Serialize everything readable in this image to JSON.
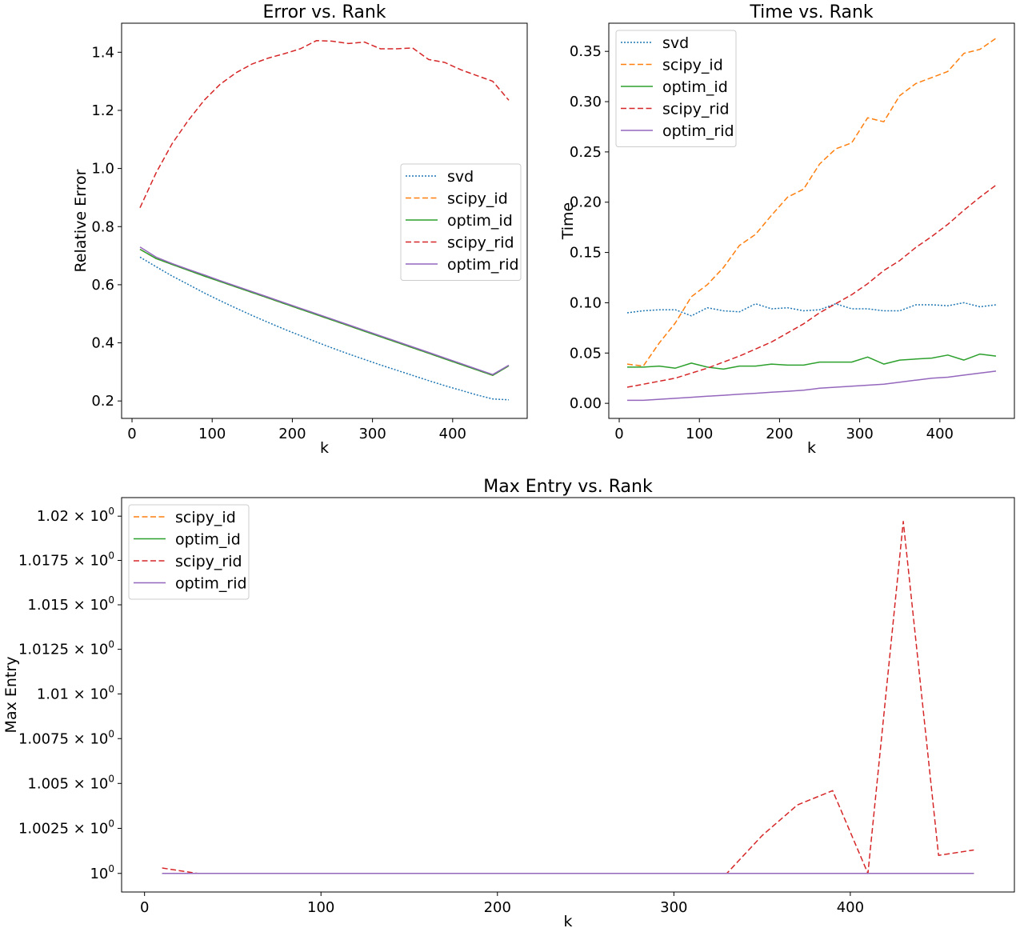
{
  "colors": {
    "svd": "#1f77b4",
    "scipy_id": "#ff7f0e",
    "optim_id": "#2ca02c",
    "scipy_rid": "#d62728",
    "optim_rid": "#9467bd"
  },
  "chart_data": [
    {
      "type": "line",
      "title": "Error vs. Rank",
      "xlabel": "k",
      "ylabel": "Relative Error",
      "xlim": [
        -13,
        493
      ],
      "ylim": [
        0.14,
        1.5
      ],
      "xticks": [
        0,
        100,
        200,
        300,
        400
      ],
      "yticks": [
        0.2,
        0.4,
        0.6,
        0.8,
        1.0,
        1.2,
        1.4
      ],
      "ytick_labels": [
        "0.2",
        "0.4",
        "0.6",
        "0.8",
        "1.0",
        "1.2",
        "1.4"
      ],
      "legend": "center-right",
      "x": [
        10,
        30,
        50,
        70,
        90,
        110,
        130,
        150,
        170,
        190,
        210,
        230,
        250,
        270,
        290,
        310,
        330,
        350,
        370,
        390,
        410,
        430,
        450,
        470
      ],
      "series": [
        {
          "name": "svd",
          "style": "dotted",
          "values": [
            0.695,
            0.662,
            0.63,
            0.601,
            0.572,
            0.545,
            0.519,
            0.494,
            0.47,
            0.447,
            0.425,
            0.403,
            0.382,
            0.362,
            0.343,
            0.324,
            0.306,
            0.288,
            0.27,
            0.253,
            0.237,
            0.221,
            0.207,
            0.204
          ]
        },
        {
          "name": "scipy_id",
          "style": "dashed",
          "values": [
            0.722,
            0.69,
            0.67,
            0.65,
            0.63,
            0.611,
            0.592,
            0.573,
            0.554,
            0.535,
            0.516,
            0.497,
            0.478,
            0.459,
            0.44,
            0.421,
            0.402,
            0.383,
            0.364,
            0.345,
            0.326,
            0.307,
            0.288,
            0.321
          ]
        },
        {
          "name": "optim_id",
          "style": "solid",
          "values": [
            0.722,
            0.69,
            0.67,
            0.65,
            0.63,
            0.611,
            0.592,
            0.573,
            0.554,
            0.535,
            0.516,
            0.497,
            0.478,
            0.459,
            0.44,
            0.421,
            0.402,
            0.383,
            0.364,
            0.345,
            0.326,
            0.307,
            0.288,
            0.321
          ]
        },
        {
          "name": "scipy_rid",
          "style": "dashed",
          "values": [
            0.865,
            0.985,
            1.085,
            1.165,
            1.235,
            1.29,
            1.33,
            1.36,
            1.38,
            1.395,
            1.412,
            1.44,
            1.438,
            1.43,
            1.435,
            1.412,
            1.412,
            1.415,
            1.375,
            1.365,
            1.34,
            1.32,
            1.3,
            1.235
          ]
        },
        {
          "name": "optim_rid",
          "style": "solid",
          "values": [
            0.73,
            0.695,
            0.673,
            0.653,
            0.634,
            0.614,
            0.595,
            0.576,
            0.557,
            0.538,
            0.519,
            0.5,
            0.481,
            0.462,
            0.443,
            0.424,
            0.405,
            0.386,
            0.367,
            0.348,
            0.329,
            0.31,
            0.291,
            0.323
          ]
        }
      ]
    },
    {
      "type": "line",
      "title": "Time vs. Rank",
      "xlabel": "k",
      "ylabel": "Time",
      "xlim": [
        -13,
        493
      ],
      "ylim": [
        -0.015,
        0.378
      ],
      "xticks": [
        0,
        100,
        200,
        300,
        400
      ],
      "yticks": [
        0.0,
        0.05,
        0.1,
        0.15,
        0.2,
        0.25,
        0.3,
        0.35
      ],
      "ytick_labels": [
        "0.00",
        "0.05",
        "0.10",
        "0.15",
        "0.20",
        "0.25",
        "0.30",
        "0.35"
      ],
      "legend": "top-left",
      "x": [
        10,
        30,
        50,
        70,
        90,
        110,
        130,
        150,
        170,
        190,
        210,
        230,
        250,
        270,
        290,
        310,
        330,
        350,
        370,
        390,
        410,
        430,
        450,
        470
      ],
      "series": [
        {
          "name": "svd",
          "style": "dotted",
          "values": [
            0.09,
            0.092,
            0.093,
            0.093,
            0.087,
            0.095,
            0.092,
            0.091,
            0.099,
            0.094,
            0.095,
            0.092,
            0.093,
            0.099,
            0.094,
            0.094,
            0.092,
            0.092,
            0.098,
            0.098,
            0.097,
            0.1,
            0.096,
            0.098
          ]
        },
        {
          "name": "scipy_id",
          "style": "dashed",
          "values": [
            0.039,
            0.037,
            0.06,
            0.08,
            0.106,
            0.118,
            0.135,
            0.157,
            0.168,
            0.187,
            0.205,
            0.213,
            0.238,
            0.253,
            0.259,
            0.284,
            0.28,
            0.306,
            0.318,
            0.324,
            0.33,
            0.348,
            0.352,
            0.363
          ]
        },
        {
          "name": "optim_id",
          "style": "solid",
          "values": [
            0.036,
            0.036,
            0.037,
            0.035,
            0.04,
            0.036,
            0.034,
            0.037,
            0.037,
            0.039,
            0.038,
            0.038,
            0.041,
            0.041,
            0.041,
            0.046,
            0.039,
            0.043,
            0.044,
            0.045,
            0.048,
            0.043,
            0.049,
            0.047
          ]
        },
        {
          "name": "scipy_rid",
          "style": "dashed",
          "values": [
            0.016,
            0.019,
            0.022,
            0.025,
            0.03,
            0.035,
            0.041,
            0.047,
            0.054,
            0.061,
            0.07,
            0.079,
            0.09,
            0.099,
            0.108,
            0.119,
            0.132,
            0.142,
            0.155,
            0.166,
            0.178,
            0.192,
            0.205,
            0.217
          ]
        },
        {
          "name": "optim_rid",
          "style": "solid",
          "values": [
            0.003,
            0.003,
            0.004,
            0.005,
            0.006,
            0.007,
            0.008,
            0.009,
            0.01,
            0.011,
            0.012,
            0.013,
            0.015,
            0.016,
            0.017,
            0.018,
            0.019,
            0.021,
            0.023,
            0.025,
            0.026,
            0.028,
            0.03,
            0.032
          ]
        }
      ]
    },
    {
      "type": "line",
      "title": "Max Entry vs. Rank",
      "xlabel": "k",
      "ylabel": "Max Entry",
      "yscale": "log",
      "xlim": [
        -13,
        493
      ],
      "ylim": [
        0.99897,
        1.02105
      ],
      "xticks": [
        0,
        100,
        200,
        300,
        400
      ],
      "yticks": [
        1.0,
        1.0025,
        1.005,
        1.0075,
        1.01,
        1.0125,
        1.015,
        1.0175,
        1.02
      ],
      "ytick_labels": [
        "1",
        "1.0025",
        "1.005",
        "1.0075",
        "1.01",
        "1.0125",
        "1.015",
        "1.0175",
        "1.02"
      ],
      "ytick_suffix": "0",
      "ytick_mult": "×10",
      "legend": "top-left",
      "x": [
        10,
        30,
        50,
        70,
        90,
        110,
        130,
        150,
        170,
        190,
        210,
        230,
        250,
        270,
        290,
        310,
        330,
        350,
        370,
        390,
        410,
        430,
        450,
        470
      ],
      "series": [
        {
          "name": "scipy_id",
          "style": "dashed",
          "values": [
            1.0,
            1.0,
            1.0,
            1.0,
            1.0,
            1.0,
            1.0,
            1.0,
            1.0,
            1.0,
            1.0,
            1.0,
            1.0,
            1.0,
            1.0,
            1.0,
            1.0,
            1.0,
            1.0,
            1.0,
            1.0,
            1.0,
            1.0,
            1.0
          ]
        },
        {
          "name": "optim_id",
          "style": "solid",
          "values": [
            1.0,
            1.0,
            1.0,
            1.0,
            1.0,
            1.0,
            1.0,
            1.0,
            1.0,
            1.0,
            1.0,
            1.0,
            1.0,
            1.0,
            1.0,
            1.0,
            1.0,
            1.0,
            1.0,
            1.0,
            1.0,
            1.0,
            1.0,
            1.0
          ]
        },
        {
          "name": "scipy_rid",
          "style": "dashed",
          "values": [
            1.0003,
            1.0,
            1.0,
            1.0,
            1.0,
            1.0,
            1.0,
            1.0,
            1.0,
            1.0,
            1.0,
            1.0,
            1.0,
            1.0,
            1.0,
            1.0,
            1.0,
            1.0021,
            1.0038,
            1.0046,
            1.0,
            1.0197,
            1.001,
            1.0013
          ]
        },
        {
          "name": "optim_rid",
          "style": "solid",
          "values": [
            1.0,
            1.0,
            1.0,
            1.0,
            1.0,
            1.0,
            1.0,
            1.0,
            1.0,
            1.0,
            1.0,
            1.0,
            1.0,
            1.0,
            1.0,
            1.0,
            1.0,
            1.0,
            1.0,
            1.0,
            1.0,
            1.0,
            1.0,
            1.0
          ]
        }
      ]
    }
  ]
}
